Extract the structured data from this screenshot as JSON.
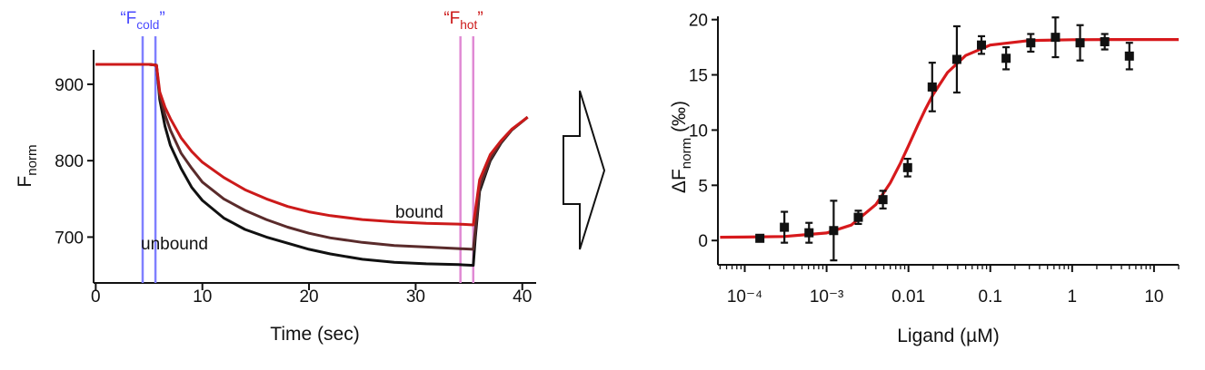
{
  "chart_data": [
    {
      "type": "line",
      "xlabel": "Time (sec)",
      "ylabel": {
        "text": "F",
        "sub": "norm"
      },
      "xlim": [
        -0.2,
        41.3
      ],
      "ylim": [
        640,
        945
      ],
      "xticks": [
        0,
        10,
        20,
        30,
        40
      ],
      "yticks": [
        700,
        800,
        900
      ],
      "x": [
        0,
        2,
        4,
        5,
        5.7,
        6,
        6.5,
        7,
        8,
        9,
        10,
        12,
        14,
        16,
        18,
        20,
        22,
        25,
        28,
        31,
        34,
        35.4,
        35.6,
        36,
        37,
        38,
        39,
        40.5
      ],
      "series": [
        {
          "name": "unbound",
          "color": "#111111",
          "values": [
            926,
            926,
            926,
            926,
            925,
            880,
            845,
            820,
            790,
            765,
            748,
            725,
            710,
            700,
            692,
            684,
            678,
            671,
            667,
            665,
            664,
            663,
            700,
            760,
            800,
            823,
            840,
            857
          ]
        },
        {
          "color": "#5a2b2b",
          "values": [
            926,
            926,
            926,
            926,
            925,
            885,
            860,
            840,
            810,
            790,
            772,
            750,
            735,
            723,
            713,
            705,
            699,
            693,
            689,
            687,
            685,
            684,
            710,
            765,
            802,
            824,
            840,
            857
          ]
        },
        {
          "name": "bound",
          "color": "#cc1a1a",
          "values": [
            926,
            926,
            926,
            926,
            925,
            890,
            870,
            855,
            830,
            812,
            798,
            778,
            762,
            750,
            740,
            733,
            728,
            723,
            720,
            718,
            717,
            716,
            735,
            775,
            808,
            826,
            841,
            857
          ]
        }
      ],
      "vlines": [
        {
          "x": 4.4,
          "color": "#7f7fff"
        },
        {
          "x": 5.6,
          "color": "#7f7fff"
        },
        {
          "x": 34.2,
          "color": "#e08ad4"
        },
        {
          "x": 35.4,
          "color": "#e08ad4"
        }
      ],
      "annotations": [
        {
          "text": "“F",
          "sub": "cold",
          "end": "”",
          "color": "#4a4aff"
        },
        {
          "text": "“F",
          "sub": "hot",
          "end": "”",
          "color": "#cc1a1a"
        }
      ]
    },
    {
      "type": "scatter",
      "xlabel": "Ligand (µM)",
      "ylabel": {
        "text": "ΔF",
        "sub": "norm",
        "end": " (‰)"
      },
      "xlog": true,
      "xlim": [
        4.7e-05,
        20
      ],
      "ylim": [
        -2.2,
        20.3
      ],
      "xticks": [
        {
          "value": 0.0001,
          "label": "10⁻⁴"
        },
        {
          "value": 0.001,
          "label": "10⁻³"
        },
        0.01,
        0.1,
        1,
        10
      ],
      "xminorticks": [
        5e-05,
        6e-05,
        7e-05,
        8e-05,
        9e-05,
        0.0002,
        0.0003,
        0.0004,
        0.0005,
        0.0006,
        0.0007,
        0.0008,
        0.0009,
        0.002,
        0.003,
        0.004,
        0.005,
        0.006,
        0.007,
        0.008,
        0.009,
        0.02,
        0.03,
        0.04,
        0.05,
        0.06,
        0.07,
        0.08,
        0.09,
        0.2,
        0.3,
        0.4,
        0.5,
        0.6,
        0.7,
        0.8,
        0.9,
        2,
        3,
        4,
        5,
        6,
        7,
        8,
        9,
        20
      ],
      "yticks": [
        0,
        5,
        10,
        15,
        20
      ],
      "x": [
        0.000153,
        0.000305,
        0.00061,
        0.00122,
        0.00244,
        0.00488,
        0.00977,
        0.0195,
        0.039,
        0.078,
        0.156,
        0.3125,
        0.625,
        1.25,
        2.5,
        5
      ],
      "series": [
        {
          "color": "#111111",
          "values": [
            0.2,
            1.2,
            0.7,
            0.9,
            2.1,
            3.7,
            6.6,
            13.9,
            16.4,
            17.7,
            16.5,
            17.9,
            18.4,
            17.9,
            18.0,
            16.7
          ],
          "errors": [
            0.2,
            1.4,
            0.9,
            2.7,
            0.6,
            0.8,
            0.8,
            2.2,
            3.0,
            0.8,
            1.0,
            0.8,
            1.8,
            1.6,
            0.7,
            1.2
          ]
        }
      ],
      "fit": {
        "color": "#d7191c",
        "x": [
          5e-05,
          0.0001,
          0.0003,
          0.001,
          0.002,
          0.004,
          0.006,
          0.008,
          0.01,
          0.013,
          0.016,
          0.02,
          0.03,
          0.05,
          0.1,
          0.3,
          1,
          3,
          10,
          20
        ],
        "values": [
          0.3,
          0.31,
          0.36,
          0.68,
          1.4,
          3.25,
          5.22,
          7.01,
          8.57,
          10.43,
          11.85,
          13.22,
          15.21,
          16.75,
          17.7,
          18.11,
          18.18,
          18.2,
          18.2,
          18.2
        ]
      }
    }
  ]
}
